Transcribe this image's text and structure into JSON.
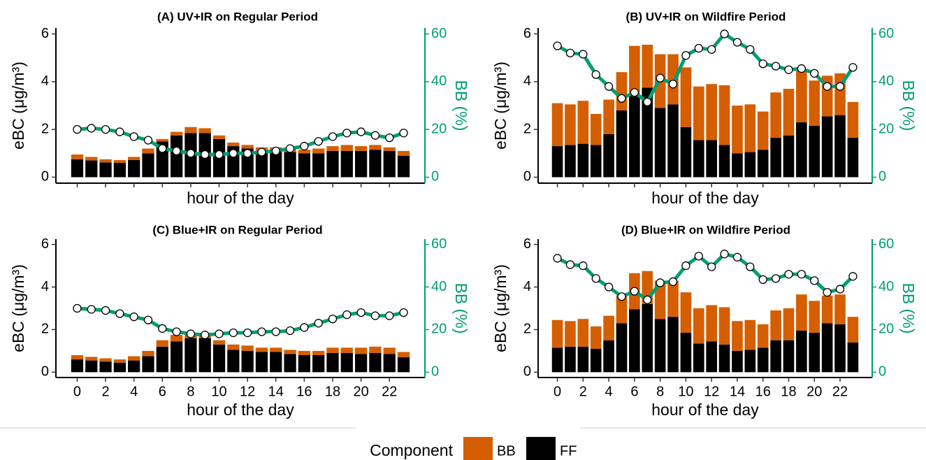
{
  "chart_data": [
    {
      "type": "bar",
      "stacked": true,
      "title": "(A) UV+IR on Regular Period",
      "xlabel": "hour of the day",
      "ylabel": "eBC (μg/m³)",
      "y2label": "BB (%)",
      "x": [
        0,
        1,
        2,
        3,
        4,
        5,
        6,
        7,
        8,
        9,
        10,
        11,
        12,
        13,
        14,
        15,
        16,
        17,
        18,
        19,
        20,
        21,
        22,
        23
      ],
      "xlim": [
        -1.5,
        24.5
      ],
      "xticks": [
        0,
        2,
        4,
        6,
        8,
        10,
        12,
        14,
        16,
        18,
        20,
        22
      ],
      "xtick_labels": false,
      "ylim": [
        -0.25,
        6.25
      ],
      "yticks": [
        0,
        2,
        4,
        6
      ],
      "y2lim": [
        -2.5,
        62.5
      ],
      "y2ticks": [
        0,
        20,
        40,
        60
      ],
      "series": [
        {
          "name": "FF",
          "color": "#000000",
          "values": [
            0.75,
            0.7,
            0.62,
            0.6,
            0.72,
            1.0,
            1.5,
            1.75,
            1.85,
            1.85,
            1.6,
            1.3,
            1.2,
            1.1,
            1.1,
            1.05,
            1.0,
            1.0,
            1.1,
            1.1,
            1.1,
            1.15,
            1.1,
            0.9
          ]
        },
        {
          "name": "BB",
          "color": "#d55e00",
          "values": [
            0.2,
            0.15,
            0.13,
            0.12,
            0.13,
            0.2,
            0.1,
            0.15,
            0.25,
            0.2,
            0.15,
            0.15,
            0.15,
            0.15,
            0.15,
            0.15,
            0.15,
            0.2,
            0.2,
            0.25,
            0.2,
            0.2,
            0.15,
            0.2
          ]
        },
        {
          "type": "line",
          "axis": "y2",
          "color": "#009e73",
          "values": [
            20,
            20.5,
            20,
            19,
            17,
            15.5,
            12,
            11,
            10,
            9.5,
            9.5,
            10,
            10,
            10.5,
            11,
            12,
            13,
            15,
            17,
            18.5,
            19,
            17.5,
            16.5,
            18.5
          ]
        }
      ]
    },
    {
      "type": "bar",
      "stacked": true,
      "title": "(B) UV+IR on Wildfire Period",
      "xlabel": "hour of the day",
      "ylabel": "eBC (μg/m³)",
      "y2label": "BB (%)",
      "x": [
        0,
        1,
        2,
        3,
        4,
        5,
        6,
        7,
        8,
        9,
        10,
        11,
        12,
        13,
        14,
        15,
        16,
        17,
        18,
        19,
        20,
        21,
        22,
        23
      ],
      "xlim": [
        -1.5,
        24.5
      ],
      "xticks": [
        0,
        2,
        4,
        6,
        8,
        10,
        12,
        14,
        16,
        18,
        20,
        22
      ],
      "xtick_labels": false,
      "ylim": [
        -0.25,
        6.25
      ],
      "yticks": [
        0,
        2,
        4,
        6
      ],
      "y2lim": [
        -2.5,
        62.5
      ],
      "y2ticks": [
        0,
        20,
        40,
        60
      ],
      "series": [
        {
          "name": "FF",
          "color": "#000000",
          "values": [
            1.3,
            1.35,
            1.4,
            1.35,
            1.8,
            2.8,
            3.4,
            3.75,
            2.9,
            3.05,
            2.1,
            1.55,
            1.55,
            1.35,
            1.0,
            1.05,
            1.15,
            1.65,
            1.75,
            2.3,
            2.15,
            2.55,
            2.6,
            1.65
          ]
        },
        {
          "name": "BB",
          "color": "#d55e00",
          "values": [
            1.8,
            1.7,
            1.8,
            1.3,
            1.45,
            1.6,
            2.1,
            1.8,
            2.25,
            2.1,
            2.5,
            2.25,
            2.35,
            2.5,
            2.0,
            2.0,
            1.6,
            1.9,
            1.95,
            2.2,
            1.9,
            1.7,
            1.75,
            1.5
          ]
        },
        {
          "type": "line",
          "axis": "y2",
          "color": "#009e73",
          "values": [
            55,
            52,
            51.5,
            43,
            38,
            33,
            35.5,
            31.5,
            41.5,
            39,
            51,
            54,
            53.5,
            60,
            56.5,
            53.5,
            47.5,
            46.5,
            45,
            45.5,
            43.5,
            38,
            38,
            46
          ]
        }
      ]
    },
    {
      "type": "bar",
      "stacked": true,
      "title": "(C) Blue+IR on Regular Period",
      "xlabel": "hour of the day",
      "ylabel": "eBC (μg/m³)",
      "y2label": "BB (%)",
      "x": [
        0,
        1,
        2,
        3,
        4,
        5,
        6,
        7,
        8,
        9,
        10,
        11,
        12,
        13,
        14,
        15,
        16,
        17,
        18,
        19,
        20,
        21,
        22,
        23
      ],
      "xlim": [
        -1.5,
        24.5
      ],
      "xticks": [
        0,
        2,
        4,
        6,
        8,
        10,
        12,
        14,
        16,
        18,
        20,
        22
      ],
      "xtick_labels": true,
      "ylim": [
        -0.25,
        6.25
      ],
      "yticks": [
        0,
        2,
        4,
        6
      ],
      "y2lim": [
        -2.5,
        62.5
      ],
      "y2ticks": [
        0,
        20,
        40,
        60
      ],
      "series": [
        {
          "name": "FF",
          "color": "#000000",
          "values": [
            0.6,
            0.55,
            0.5,
            0.45,
            0.55,
            0.75,
            1.2,
            1.45,
            1.6,
            1.6,
            1.3,
            1.05,
            1.0,
            0.95,
            0.95,
            0.85,
            0.8,
            0.8,
            0.9,
            0.9,
            0.85,
            0.9,
            0.85,
            0.7
          ]
        },
        {
          "name": "BB",
          "color": "#d55e00",
          "values": [
            0.2,
            0.17,
            0.15,
            0.15,
            0.2,
            0.25,
            0.3,
            0.3,
            0.25,
            0.25,
            0.2,
            0.25,
            0.25,
            0.2,
            0.2,
            0.2,
            0.2,
            0.2,
            0.25,
            0.25,
            0.3,
            0.3,
            0.3,
            0.25
          ]
        },
        {
          "type": "line",
          "axis": "y2",
          "color": "#009e73",
          "values": [
            30,
            29.5,
            29,
            27.5,
            26,
            24.5,
            20.5,
            19,
            18,
            17.5,
            18,
            18.5,
            18.5,
            19,
            19,
            19.5,
            21,
            23,
            25,
            27,
            28,
            26.5,
            26.5,
            28
          ]
        }
      ]
    },
    {
      "type": "bar",
      "stacked": true,
      "title": "(D) Blue+IR on Wildfire Period",
      "xlabel": "hour of the day",
      "ylabel": "eBC (μg/m³)",
      "y2label": "BB (%)",
      "x": [
        0,
        1,
        2,
        3,
        4,
        5,
        6,
        7,
        8,
        9,
        10,
        11,
        12,
        13,
        14,
        15,
        16,
        17,
        18,
        19,
        20,
        21,
        22,
        23
      ],
      "xlim": [
        -1.5,
        24.5
      ],
      "xticks": [
        0,
        2,
        4,
        6,
        8,
        10,
        12,
        14,
        16,
        18,
        20,
        22
      ],
      "xtick_labels": true,
      "ylim": [
        -0.25,
        6.25
      ],
      "yticks": [
        0,
        2,
        4,
        6
      ],
      "y2lim": [
        -2.5,
        62.5
      ],
      "y2ticks": [
        0,
        20,
        40,
        60
      ],
      "series": [
        {
          "name": "FF",
          "color": "#000000",
          "values": [
            1.15,
            1.2,
            1.2,
            1.1,
            1.5,
            2.3,
            2.95,
            3.2,
            2.5,
            2.6,
            1.85,
            1.35,
            1.45,
            1.3,
            1.0,
            1.05,
            1.15,
            1.5,
            1.5,
            1.95,
            1.85,
            2.3,
            2.25,
            1.4
          ]
        },
        {
          "name": "BB",
          "color": "#d55e00",
          "values": [
            1.3,
            1.2,
            1.3,
            1.05,
            1.15,
            1.3,
            1.7,
            1.55,
            1.8,
            1.7,
            1.9,
            1.65,
            1.7,
            1.75,
            1.4,
            1.4,
            1.1,
            1.4,
            1.5,
            1.7,
            1.5,
            1.3,
            1.4,
            1.2
          ]
        },
        {
          "type": "line",
          "axis": "y2",
          "color": "#009e73",
          "values": [
            53.5,
            50.5,
            50,
            44,
            40,
            35.5,
            38,
            34,
            42,
            42.5,
            50,
            54.5,
            49.5,
            55.5,
            54,
            49.5,
            43.5,
            44,
            46,
            46,
            43,
            37.5,
            39,
            45
          ]
        }
      ]
    }
  ],
  "legend": {
    "title": "Component"
  }
}
